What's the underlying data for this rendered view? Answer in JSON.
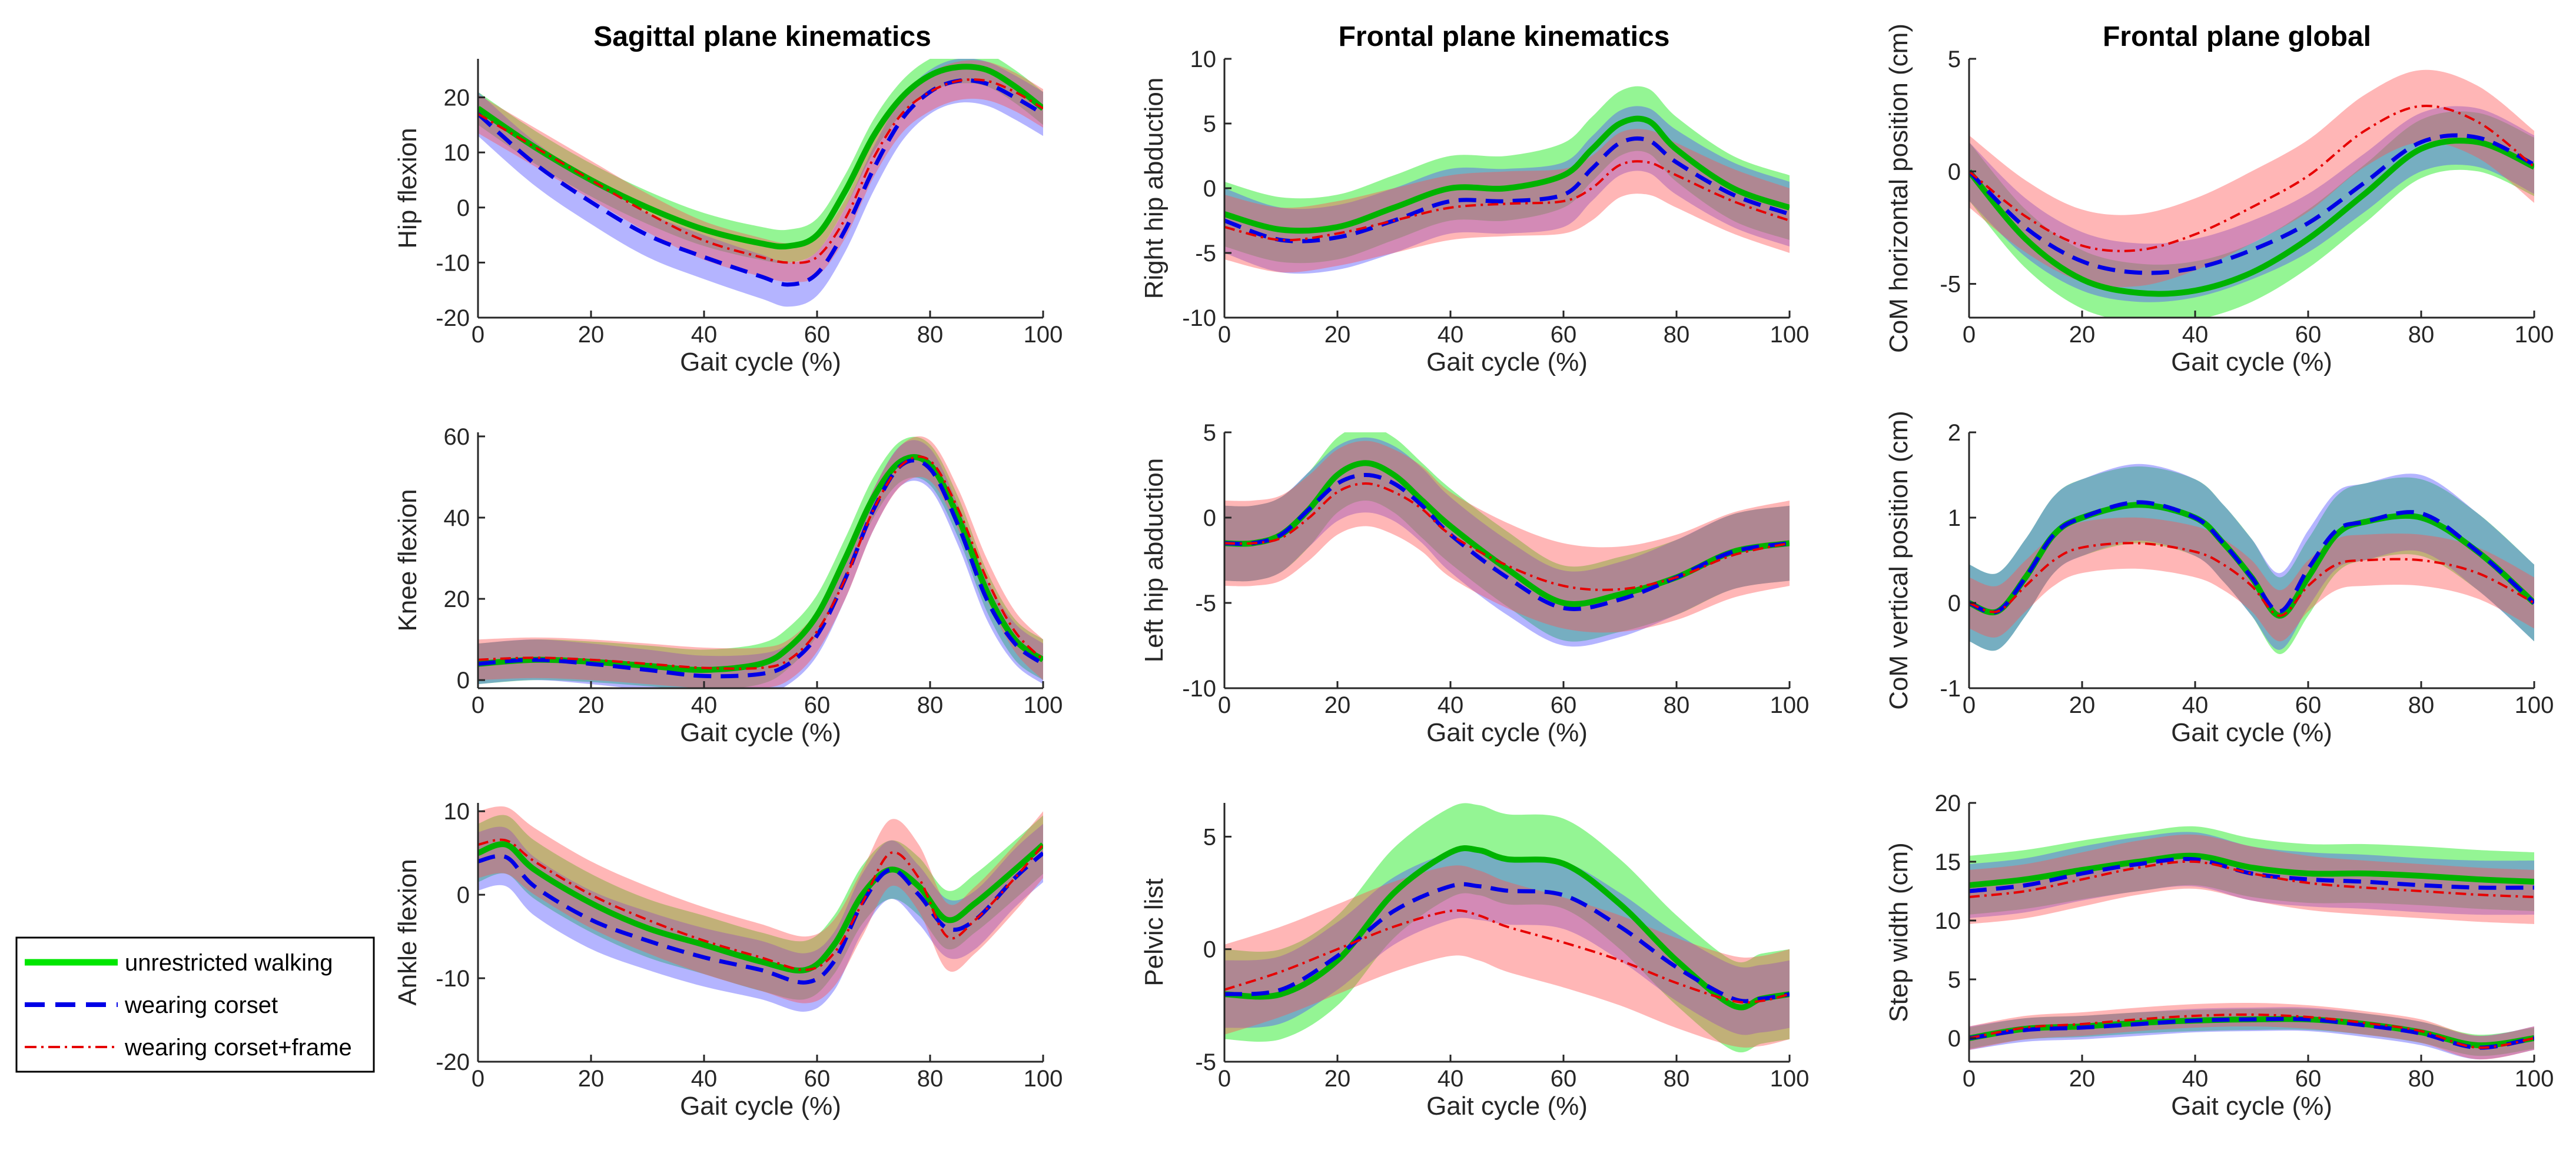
{
  "figure": {
    "column_titles": [
      "Sagittal plane kinematics",
      "Frontal plane kinematics",
      "Frontal plane global"
    ],
    "legend": [
      {
        "label": "unrestricted walking",
        "color": "#00e600",
        "style": "solid"
      },
      {
        "label": "wearing corset",
        "color": "#0000e6",
        "style": "dashed"
      },
      {
        "label": "wearing corset+frame",
        "color": "#e60000",
        "style": "dashdot"
      }
    ]
  },
  "chart_data": [
    {
      "type": "line",
      "title": "Sagittal plane kinematics",
      "ylabel": "Hip flexion",
      "xlabel": "Gait cycle (%)",
      "xlim": [
        0,
        100
      ],
      "ylim": [
        -20,
        27
      ],
      "xticks": [
        0,
        20,
        40,
        60,
        80,
        100
      ],
      "yticks": [
        -20,
        -10,
        0,
        10,
        20
      ],
      "x": [
        0,
        10,
        20,
        30,
        40,
        50,
        55,
        60,
        65,
        70,
        75,
        80,
        85,
        90,
        95,
        100
      ],
      "series": [
        {
          "name": "unrestricted walking",
          "values": [
            18,
            11,
            5,
            0,
            -4,
            -6.5,
            -7,
            -5,
            3,
            13,
            20,
            24,
            25.5,
            25,
            22,
            18
          ],
          "sd": 3
        },
        {
          "name": "wearing corset",
          "values": [
            17,
            8,
            1,
            -5,
            -9,
            -12.5,
            -14,
            -12,
            -4,
            7,
            16,
            21,
            23,
            22.5,
            20,
            17
          ],
          "sd": 4
        },
        {
          "name": "wearing corset+frame",
          "values": [
            17,
            11,
            5,
            -1,
            -6,
            -9,
            -10,
            -9,
            -2,
            9,
            17,
            21,
            23,
            23,
            21,
            18
          ],
          "sd": 3.5
        }
      ]
    },
    {
      "type": "line",
      "title": "",
      "ylabel": "Right hip abduction",
      "xlabel": "Gait cycle (%)",
      "xlim": [
        0,
        100
      ],
      "ylim": [
        -10,
        10
      ],
      "xticks": [
        0,
        20,
        40,
        60,
        80,
        100
      ],
      "yticks": [
        -10,
        -5,
        0,
        5,
        10
      ],
      "x": [
        0,
        10,
        20,
        30,
        40,
        50,
        60,
        65,
        70,
        75,
        80,
        90,
        100
      ],
      "series": [
        {
          "name": "unrestricted walking",
          "values": [
            -2,
            -3.2,
            -3,
            -1.5,
            0,
            0,
            1,
            3,
            5,
            5.2,
            3,
            0,
            -1.5
          ],
          "sd": 2.5
        },
        {
          "name": "wearing corset",
          "values": [
            -2.5,
            -4,
            -3.8,
            -2.5,
            -1,
            -1,
            -0.5,
            1.5,
            3.5,
            3.7,
            2,
            -0.5,
            -2
          ],
          "sd": 2.5
        },
        {
          "name": "wearing corset+frame",
          "values": [
            -3,
            -4,
            -3.5,
            -2.5,
            -1.5,
            -1.2,
            -1,
            0,
            1.8,
            2,
            1,
            -1,
            -2.5
          ],
          "sd": 2.5
        }
      ]
    },
    {
      "type": "line",
      "title": "",
      "ylabel": "CoM horizontal position (cm)",
      "xlabel": "Gait cycle (%)",
      "xlim": [
        0,
        100
      ],
      "ylim": [
        -6.5,
        5
      ],
      "xticks": [
        0,
        20,
        40,
        60,
        80,
        100
      ],
      "yticks": [
        -5,
        0,
        5
      ],
      "x": [
        0,
        10,
        20,
        30,
        40,
        50,
        60,
        70,
        80,
        90,
        100
      ],
      "series": [
        {
          "name": "unrestricted walking",
          "values": [
            0,
            -3,
            -4.8,
            -5.4,
            -5.3,
            -4.5,
            -3,
            -1,
            1,
            1.3,
            0.2
          ],
          "sd": 1.3
        },
        {
          "name": "wearing corset",
          "values": [
            0,
            -2.5,
            -4,
            -4.5,
            -4.3,
            -3.5,
            -2.3,
            -0.5,
            1.3,
            1.5,
            0.3
          ],
          "sd": 1.3
        },
        {
          "name": "wearing corset+frame",
          "values": [
            0,
            -2,
            -3.3,
            -3.5,
            -2.8,
            -1.6,
            -0.2,
            1.8,
            2.9,
            2.2,
            0.2
          ],
          "sd": 1.6
        }
      ]
    },
    {
      "type": "line",
      "title": "",
      "ylabel": "Knee flexion",
      "xlabel": "Gait cycle (%)",
      "xlim": [
        0,
        100
      ],
      "ylim": [
        -2,
        61
      ],
      "xticks": [
        0,
        20,
        40,
        60,
        80,
        100
      ],
      "yticks": [
        0,
        20,
        40,
        60
      ],
      "x": [
        0,
        10,
        20,
        30,
        40,
        50,
        55,
        60,
        65,
        70,
        75,
        80,
        85,
        90,
        95,
        100
      ],
      "series": [
        {
          "name": "unrestricted walking",
          "values": [
            4,
            5,
            4.5,
            3.5,
            2.5,
            4,
            8,
            16,
            30,
            45,
            54,
            53,
            40,
            22,
            10,
            5
          ],
          "sd": 5
        },
        {
          "name": "wearing corset",
          "values": [
            4,
            5,
            4,
            2.5,
            1,
            1.5,
            4,
            11,
            25,
            42,
            53,
            52,
            38,
            20,
            9,
            4
          ],
          "sd": 5
        },
        {
          "name": "wearing corset+frame",
          "values": [
            5,
            5.5,
            5,
            4,
            3,
            3,
            5,
            12,
            25,
            42,
            53,
            54,
            42,
            25,
            12,
            5
          ],
          "sd": 5
        }
      ]
    },
    {
      "type": "line",
      "title": "",
      "ylabel": "Left hip abduction",
      "xlabel": "Gait cycle (%)",
      "xlim": [
        0,
        100
      ],
      "ylim": [
        -10,
        5
      ],
      "xticks": [
        0,
        20,
        40,
        60,
        80,
        100
      ],
      "yticks": [
        -10,
        -5,
        0,
        5
      ],
      "x": [
        0,
        5,
        10,
        15,
        20,
        25,
        30,
        35,
        40,
        50,
        60,
        70,
        80,
        90,
        100
      ],
      "series": [
        {
          "name": "unrestricted walking",
          "values": [
            -1.5,
            -1.5,
            -1,
            0.5,
            2.5,
            3.2,
            2.5,
            1,
            -0.5,
            -3,
            -5,
            -4.5,
            -3.5,
            -2,
            -1.5
          ],
          "sd": 2.2
        },
        {
          "name": "wearing corset",
          "values": [
            -1.5,
            -1.5,
            -1,
            0.5,
            2,
            2.5,
            2,
            0.7,
            -1,
            -3.5,
            -5.3,
            -4.8,
            -3.5,
            -2,
            -1.5
          ],
          "sd": 2.2
        },
        {
          "name": "wearing corset+frame",
          "values": [
            -1.5,
            -1.5,
            -1.2,
            0,
            1.5,
            2,
            1.5,
            0.5,
            -1,
            -2.8,
            -4,
            -4.2,
            -3.5,
            -2.2,
            -1.5
          ],
          "sd": 2.5
        }
      ]
    },
    {
      "type": "line",
      "title": "",
      "ylabel": "CoM vertical position (cm)",
      "xlabel": "Gait cycle (%)",
      "xlim": [
        0,
        100
      ],
      "ylim": [
        -1,
        2
      ],
      "xticks": [
        0,
        20,
        40,
        60,
        80,
        100
      ],
      "yticks": [
        -1,
        0,
        1,
        2
      ],
      "x": [
        0,
        5,
        10,
        15,
        20,
        30,
        40,
        45,
        50,
        55,
        60,
        65,
        70,
        80,
        90,
        100
      ],
      "series": [
        {
          "name": "unrestricted walking",
          "values": [
            0,
            -0.1,
            0.3,
            0.8,
            1,
            1.15,
            1,
            0.7,
            0.3,
            -0.15,
            0.3,
            0.8,
            0.95,
            1,
            0.6,
            0
          ],
          "sd": 0.45
        },
        {
          "name": "wearing corset",
          "values": [
            0,
            -0.1,
            0.3,
            0.8,
            1,
            1.18,
            1,
            0.7,
            0.3,
            -0.1,
            0.4,
            0.85,
            0.95,
            1.05,
            0.6,
            0
          ],
          "sd": 0.45
        },
        {
          "name": "wearing corset+frame",
          "values": [
            0,
            -0.1,
            0.2,
            0.5,
            0.65,
            0.7,
            0.6,
            0.45,
            0.2,
            -0.15,
            0.2,
            0.45,
            0.5,
            0.5,
            0.35,
            0
          ],
          "sd": 0.3
        }
      ]
    },
    {
      "type": "line",
      "title": "",
      "ylabel": "Ankle flexion",
      "xlabel": "Gait cycle (%)",
      "xlim": [
        0,
        100
      ],
      "ylim": [
        -20,
        11
      ],
      "xticks": [
        0,
        20,
        40,
        60,
        80,
        100
      ],
      "yticks": [
        -20,
        -10,
        0,
        10
      ],
      "x": [
        0,
        5,
        10,
        20,
        30,
        40,
        50,
        58,
        63,
        68,
        73,
        78,
        83,
        88,
        95,
        100
      ],
      "series": [
        {
          "name": "unrestricted walking",
          "values": [
            5,
            6,
            3,
            -1,
            -4,
            -6,
            -8,
            -9,
            -6,
            0,
            3,
            1,
            -3,
            -1,
            3,
            6
          ],
          "sd": 3.5
        },
        {
          "name": "wearing corset",
          "values": [
            4,
            4.5,
            1,
            -3,
            -5.5,
            -7.5,
            -9,
            -10.5,
            -8,
            -1,
            3,
            0,
            -4,
            -3,
            2,
            5
          ],
          "sd": 3.5
        },
        {
          "name": "wearing corset+frame",
          "values": [
            6,
            6.5,
            4,
            0,
            -3,
            -5.5,
            -7.5,
            -9,
            -7,
            -1,
            5,
            2,
            -5,
            -3,
            2,
            6
          ],
          "sd": 4
        }
      ]
    },
    {
      "type": "line",
      "title": "",
      "ylabel": "Pelvic list",
      "xlabel": "Gait cycle (%)",
      "xlim": [
        0,
        100
      ],
      "ylim": [
        -5,
        6.5
      ],
      "xticks": [
        0,
        20,
        40,
        60,
        80,
        100
      ],
      "yticks": [
        -5,
        0,
        5
      ],
      "x": [
        0,
        10,
        20,
        30,
        40,
        45,
        50,
        60,
        70,
        80,
        90,
        95,
        100
      ],
      "series": [
        {
          "name": "unrestricted walking",
          "values": [
            -2,
            -2,
            -0.5,
            2.5,
            4.3,
            4.4,
            4,
            3.8,
            2,
            -0.5,
            -2.5,
            -2.2,
            -2
          ],
          "sd": 2
        },
        {
          "name": "wearing corset",
          "values": [
            -2,
            -1.8,
            -0.3,
            1.7,
            2.8,
            2.8,
            2.6,
            2.4,
            1,
            -0.8,
            -2.2,
            -2.2,
            -2
          ],
          "sd": 1.5
        },
        {
          "name": "wearing corset+frame",
          "values": [
            -1.8,
            -1,
            0,
            1,
            1.7,
            1.5,
            1,
            0.3,
            -0.5,
            -1.5,
            -2.3,
            -2.3,
            -2
          ],
          "sd": 2
        }
      ]
    },
    {
      "type": "line",
      "title": "",
      "ylabel": "Step width (cm)",
      "xlabel": "Gait cycle (%)",
      "xlim": [
        0,
        100
      ],
      "ylim": [
        -2,
        20
      ],
      "xticks": [
        0,
        20,
        40,
        60,
        80,
        100
      ],
      "yticks": [
        0,
        5,
        10,
        15,
        20
      ],
      "x": [
        0,
        10,
        20,
        30,
        40,
        50,
        60,
        70,
        80,
        90,
        100
      ],
      "series": [
        {
          "name": "unrestricted walking",
          "values": [
            13,
            13.5,
            14.3,
            15,
            15.5,
            14.5,
            14,
            14,
            13.8,
            13.5,
            13.3
          ],
          "sd": 2.5
        },
        {
          "name": "wearing corset",
          "values": [
            12.5,
            13,
            14,
            14.8,
            15.2,
            14,
            13.5,
            13.3,
            13,
            12.8,
            12.8
          ],
          "sd": 2.3
        },
        {
          "name": "wearing corset+frame",
          "values": [
            12,
            12.5,
            13.5,
            14.5,
            15,
            14,
            13.2,
            12.8,
            12.5,
            12.2,
            12
          ],
          "sd": 2.3
        },
        {
          "name": "unrestricted walking",
          "values": [
            0,
            0.8,
            1,
            1.3,
            1.5,
            1.6,
            1.6,
            1.2,
            0.5,
            -0.6,
            0
          ],
          "sd": 0.9
        },
        {
          "name": "wearing corset",
          "values": [
            0,
            0.7,
            0.9,
            1.2,
            1.5,
            1.6,
            1.6,
            1.1,
            0.4,
            -0.8,
            0
          ],
          "sd": 1
        },
        {
          "name": "wearing corset+frame",
          "values": [
            0,
            0.9,
            1.2,
            1.6,
            1.9,
            2,
            1.8,
            1.3,
            0.6,
            -0.8,
            0
          ],
          "sd": 1
        }
      ]
    }
  ]
}
